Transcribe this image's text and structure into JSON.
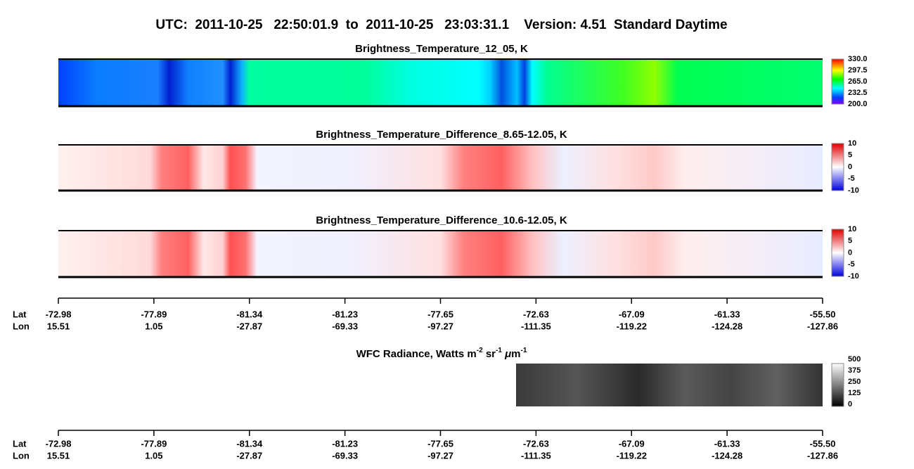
{
  "header": {
    "title": "UTC:  2011-10-25   22:50:01.9  to  2011-10-25   23:03:31.1    Version: 4.51  Standard Daytime"
  },
  "panels": [
    {
      "title": "Brightness_Temperature_12_05, K",
      "colorbar": [
        "330.0",
        "297.5",
        "265.0",
        "232.5",
        "200.0"
      ]
    },
    {
      "title": "Brightness_Temperature_Difference_8.65-12.05, K",
      "colorbar": [
        "10",
        "5",
        "0",
        "-5",
        "-10"
      ]
    },
    {
      "title": "Brightness_Temperature_Difference_10.6-12.05, K",
      "colorbar": [
        "10",
        "5",
        "0",
        "-5",
        "-10"
      ]
    }
  ],
  "wfc": {
    "title": {
      "text": "WFC Radiance, Watts m",
      "sup1": "-2",
      "mid": " sr",
      "sup2": "-1",
      "mu": " μ",
      "m": "m",
      "sup3": "-1"
    },
    "colorbar": [
      "500",
      "375",
      "250",
      "125",
      "0"
    ]
  },
  "axis": {
    "lat_label": "Lat",
    "lon_label": "Lon",
    "lat": [
      "-72.98",
      "-77.89",
      "-81.34",
      "-81.23",
      "-77.65",
      "-72.63",
      "-67.09",
      "-61.33",
      "-55.50"
    ],
    "lon": [
      "15.51",
      "1.05",
      "-27.87",
      "-69.33",
      "-97.27",
      "-111.35",
      "-119.22",
      "-124.28",
      "-127.86"
    ]
  }
}
